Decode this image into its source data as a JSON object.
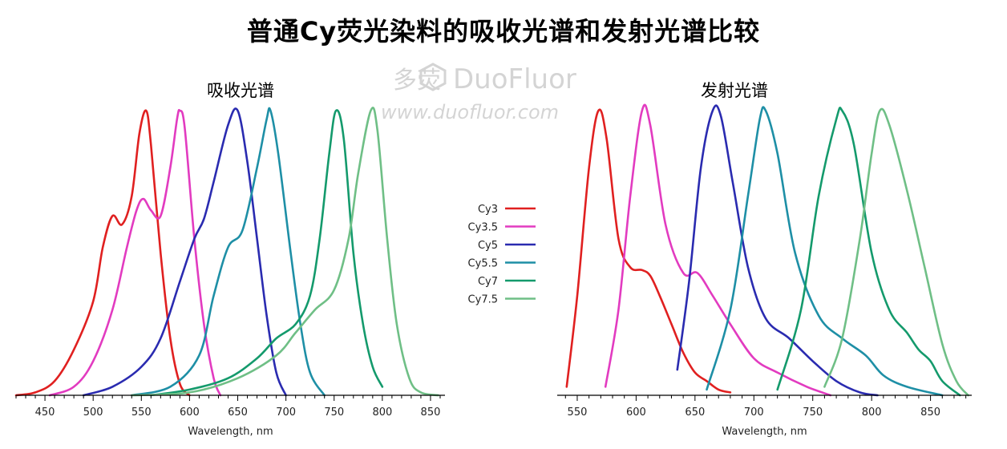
{
  "title": "普通Cy荧光染料的吸收光谱和发射光谱比较",
  "watermark": {
    "brand": "DuoFluor",
    "url": "www.duofluor.com",
    "logo_text": "多荧"
  },
  "legend": [
    "Cy3",
    "Cy3.5",
    "Cy5",
    "Cy5.5",
    "Cy7",
    "Cy7.5"
  ],
  "colors": {
    "Cy3": "#e02020",
    "Cy3.5": "#e23bc0",
    "Cy5": "#2a2bb0",
    "Cy5.5": "#1e8fa6",
    "Cy7": "#149a6c",
    "Cy7.5": "#6fbf86"
  },
  "chart_data": [
    {
      "type": "line",
      "title": "吸收光谱",
      "xlabel": "Wavelength, nm",
      "ylabel": "",
      "xlim": [
        420,
        865
      ],
      "ylim": [
        0,
        1
      ],
      "xticks": [
        450,
        500,
        550,
        600,
        650,
        700,
        750,
        800,
        850
      ],
      "grid": false,
      "series": [
        {
          "name": "Cy3",
          "points": [
            [
              420,
              0
            ],
            [
              440,
              0.01
            ],
            [
              460,
              0.05
            ],
            [
              480,
              0.16
            ],
            [
              500,
              0.33
            ],
            [
              510,
              0.52
            ],
            [
              520,
              0.63
            ],
            [
              530,
              0.6
            ],
            [
              540,
              0.7
            ],
            [
              548,
              0.92
            ],
            [
              555,
              1.0
            ],
            [
              560,
              0.88
            ],
            [
              570,
              0.5
            ],
            [
              580,
              0.2
            ],
            [
              590,
              0.04
            ],
            [
              600,
              0
            ]
          ]
        },
        {
          "name": "Cy3.5",
          "points": [
            [
              455,
              0
            ],
            [
              480,
              0.03
            ],
            [
              500,
              0.12
            ],
            [
              520,
              0.3
            ],
            [
              535,
              0.52
            ],
            [
              545,
              0.65
            ],
            [
              552,
              0.69
            ],
            [
              560,
              0.65
            ],
            [
              570,
              0.63
            ],
            [
              580,
              0.8
            ],
            [
              587,
              0.97
            ],
            [
              590,
              1.0
            ],
            [
              595,
              0.94
            ],
            [
              605,
              0.55
            ],
            [
              615,
              0.25
            ],
            [
              625,
              0.06
            ],
            [
              632,
              0
            ]
          ]
        },
        {
          "name": "Cy5",
          "points": [
            [
              490,
              0
            ],
            [
              520,
              0.03
            ],
            [
              550,
              0.1
            ],
            [
              570,
              0.2
            ],
            [
              590,
              0.4
            ],
            [
              605,
              0.55
            ],
            [
              615,
              0.62
            ],
            [
              625,
              0.75
            ],
            [
              640,
              0.95
            ],
            [
              650,
              1.0
            ],
            [
              660,
              0.82
            ],
            [
              670,
              0.55
            ],
            [
              680,
              0.28
            ],
            [
              690,
              0.08
            ],
            [
              700,
              0
            ]
          ]
        },
        {
          "name": "Cy5.5",
          "points": [
            [
              540,
              0
            ],
            [
              580,
              0.03
            ],
            [
              610,
              0.14
            ],
            [
              625,
              0.35
            ],
            [
              640,
              0.52
            ],
            [
              655,
              0.58
            ],
            [
              670,
              0.8
            ],
            [
              680,
              0.97
            ],
            [
              684,
              1.0
            ],
            [
              692,
              0.85
            ],
            [
              705,
              0.5
            ],
            [
              715,
              0.25
            ],
            [
              725,
              0.08
            ],
            [
              740,
              0
            ]
          ]
        },
        {
          "name": "Cy7",
          "points": [
            [
              560,
              0
            ],
            [
              600,
              0.02
            ],
            [
              640,
              0.06
            ],
            [
              670,
              0.13
            ],
            [
              690,
              0.2
            ],
            [
              710,
              0.25
            ],
            [
              725,
              0.35
            ],
            [
              735,
              0.55
            ],
            [
              745,
              0.85
            ],
            [
              752,
              1.0
            ],
            [
              760,
              0.9
            ],
            [
              770,
              0.5
            ],
            [
              780,
              0.25
            ],
            [
              790,
              0.1
            ],
            [
              800,
              0.03
            ]
          ]
        },
        {
          "name": "Cy7.5",
          "points": [
            [
              540,
              0
            ],
            [
              600,
              0.01
            ],
            [
              650,
              0.06
            ],
            [
              690,
              0.14
            ],
            [
              710,
              0.22
            ],
            [
              730,
              0.3
            ],
            [
              750,
              0.37
            ],
            [
              765,
              0.55
            ],
            [
              775,
              0.78
            ],
            [
              788,
              1.0
            ],
            [
              795,
              0.93
            ],
            [
              805,
              0.55
            ],
            [
              815,
              0.25
            ],
            [
              828,
              0.06
            ],
            [
              840,
              0.01
            ],
            [
              858,
              0
            ]
          ]
        }
      ]
    },
    {
      "type": "line",
      "title": "发射光谱",
      "xlabel": "Wavelength, nm",
      "ylabel": "",
      "xlim": [
        533,
        885
      ],
      "ylim": [
        0,
        1
      ],
      "xticks": [
        550,
        600,
        650,
        700,
        750,
        800,
        850
      ],
      "grid": false,
      "series": [
        {
          "name": "Cy3",
          "points": [
            [
              541,
              0.03
            ],
            [
              550,
              0.35
            ],
            [
              560,
              0.8
            ],
            [
              568,
              1.0
            ],
            [
              575,
              0.9
            ],
            [
              585,
              0.55
            ],
            [
              595,
              0.45
            ],
            [
              605,
              0.44
            ],
            [
              612,
              0.42
            ],
            [
              620,
              0.35
            ],
            [
              630,
              0.25
            ],
            [
              640,
              0.15
            ],
            [
              650,
              0.08
            ],
            [
              660,
              0.05
            ],
            [
              670,
              0.02
            ],
            [
              680,
              0.01
            ]
          ]
        },
        {
          "name": "Cy3.5",
          "points": [
            [
              574,
              0.03
            ],
            [
              585,
              0.3
            ],
            [
              595,
              0.7
            ],
            [
              605,
              1.0
            ],
            [
              612,
              0.95
            ],
            [
              625,
              0.6
            ],
            [
              640,
              0.43
            ],
            [
              652,
              0.43
            ],
            [
              665,
              0.35
            ],
            [
              680,
              0.25
            ],
            [
              700,
              0.13
            ],
            [
              720,
              0.08
            ],
            [
              745,
              0.03
            ],
            [
              765,
              0
            ]
          ]
        },
        {
          "name": "Cy5",
          "points": [
            [
              635,
              0.09
            ],
            [
              645,
              0.4
            ],
            [
              655,
              0.8
            ],
            [
              665,
              1.0
            ],
            [
              672,
              0.98
            ],
            [
              682,
              0.75
            ],
            [
              695,
              0.45
            ],
            [
              710,
              0.27
            ],
            [
              730,
              0.2
            ],
            [
              750,
              0.12
            ],
            [
              770,
              0.05
            ],
            [
              790,
              0.01
            ],
            [
              805,
              0
            ]
          ]
        },
        {
          "name": "Cy5.5",
          "points": [
            [
              660,
              0.02
            ],
            [
              680,
              0.3
            ],
            [
              695,
              0.7
            ],
            [
              705,
              0.97
            ],
            [
              710,
              1.0
            ],
            [
              720,
              0.85
            ],
            [
              735,
              0.5
            ],
            [
              755,
              0.28
            ],
            [
              775,
              0.2
            ],
            [
              795,
              0.14
            ],
            [
              810,
              0.07
            ],
            [
              830,
              0.03
            ],
            [
              860,
              0
            ]
          ]
        },
        {
          "name": "Cy7",
          "points": [
            [
              720,
              0.02
            ],
            [
              740,
              0.3
            ],
            [
              755,
              0.7
            ],
            [
              770,
              0.97
            ],
            [
              775,
              1.0
            ],
            [
              785,
              0.88
            ],
            [
              800,
              0.5
            ],
            [
              815,
              0.3
            ],
            [
              830,
              0.22
            ],
            [
              840,
              0.16
            ],
            [
              850,
              0.12
            ],
            [
              860,
              0.05
            ],
            [
              875,
              0
            ]
          ]
        },
        {
          "name": "Cy7.5",
          "points": [
            [
              760,
              0.03
            ],
            [
              775,
              0.2
            ],
            [
              790,
              0.55
            ],
            [
              800,
              0.85
            ],
            [
              807,
              1.0
            ],
            [
              815,
              0.95
            ],
            [
              830,
              0.72
            ],
            [
              845,
              0.45
            ],
            [
              860,
              0.18
            ],
            [
              872,
              0.05
            ],
            [
              882,
              0
            ]
          ]
        }
      ]
    }
  ]
}
